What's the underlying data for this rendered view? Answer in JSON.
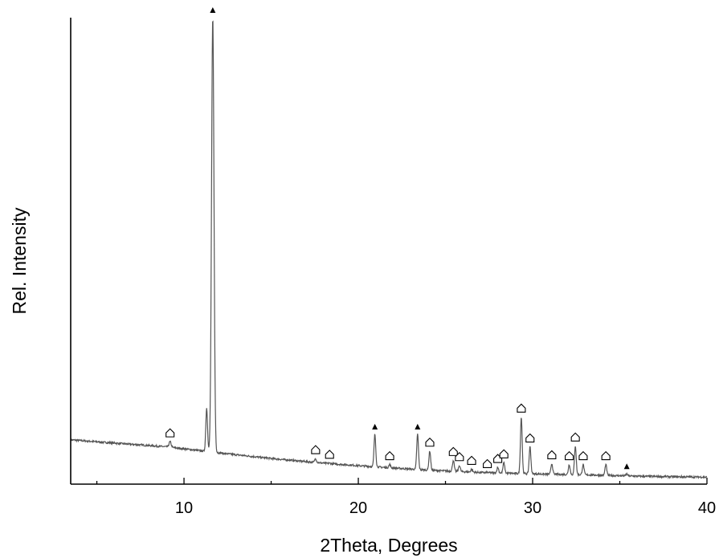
{
  "chart_data": {
    "type": "line",
    "title": "",
    "xlabel": "2Theta, Degrees",
    "ylabel": "Rel. Intensity",
    "xlim": [
      3.5,
      40
    ],
    "ylim": [
      0,
      1000
    ],
    "x_ticks": [
      10,
      20,
      30,
      40
    ],
    "x_minor_ticks": [
      5,
      15,
      25,
      35
    ],
    "y_ticks": [],
    "grid": false,
    "legend": "none",
    "colors": {
      "trace": "#555555",
      "axis": "#000000"
    },
    "baseline": [
      {
        "x": 3.5,
        "y": 95
      },
      {
        "x": 6,
        "y": 88
      },
      {
        "x": 9,
        "y": 80
      },
      {
        "x": 12,
        "y": 67
      },
      {
        "x": 15,
        "y": 55
      },
      {
        "x": 18,
        "y": 45
      },
      {
        "x": 21,
        "y": 37
      },
      {
        "x": 24,
        "y": 30
      },
      {
        "x": 27,
        "y": 25
      },
      {
        "x": 30,
        "y": 22
      },
      {
        "x": 33,
        "y": 20
      },
      {
        "x": 36,
        "y": 17
      },
      {
        "x": 40,
        "y": 15
      }
    ],
    "peaks": [
      {
        "x": 9.2,
        "y": 91,
        "width": 0.06,
        "marker": "house"
      },
      {
        "x": 11.3,
        "y": 163,
        "width": 0.05,
        "marker": "none"
      },
      {
        "x": 11.65,
        "y": 1000,
        "width": 0.07,
        "marker": "triangle"
      },
      {
        "x": 17.55,
        "y": 55,
        "width": 0.05,
        "marker": "house"
      },
      {
        "x": 18.35,
        "y": 45,
        "width": 0.05,
        "marker": "house"
      },
      {
        "x": 20.95,
        "y": 107,
        "width": 0.05,
        "marker": "triangle"
      },
      {
        "x": 21.8,
        "y": 42,
        "width": 0.05,
        "marker": "house"
      },
      {
        "x": 23.4,
        "y": 107,
        "width": 0.05,
        "marker": "triangle"
      },
      {
        "x": 24.1,
        "y": 71,
        "width": 0.05,
        "marker": "house"
      },
      {
        "x": 25.45,
        "y": 51,
        "width": 0.05,
        "marker": "house"
      },
      {
        "x": 25.8,
        "y": 40,
        "width": 0.05,
        "marker": "house"
      },
      {
        "x": 26.5,
        "y": 32,
        "width": 0.05,
        "marker": "house"
      },
      {
        "x": 27.4,
        "y": 25,
        "width": 0.05,
        "marker": "house"
      },
      {
        "x": 28.0,
        "y": 36,
        "width": 0.05,
        "marker": "house"
      },
      {
        "x": 28.35,
        "y": 46,
        "width": 0.05,
        "marker": "house"
      },
      {
        "x": 29.35,
        "y": 144,
        "width": 0.05,
        "marker": "house"
      },
      {
        "x": 29.85,
        "y": 80,
        "width": 0.05,
        "marker": "house"
      },
      {
        "x": 31.1,
        "y": 44,
        "width": 0.05,
        "marker": "house"
      },
      {
        "x": 32.1,
        "y": 42,
        "width": 0.05,
        "marker": "house"
      },
      {
        "x": 32.45,
        "y": 82,
        "width": 0.05,
        "marker": "house"
      },
      {
        "x": 32.9,
        "y": 42,
        "width": 0.05,
        "marker": "house"
      },
      {
        "x": 34.2,
        "y": 42,
        "width": 0.05,
        "marker": "house"
      },
      {
        "x": 35.4,
        "y": 22,
        "width": 0.05,
        "marker": "triangle"
      }
    ]
  }
}
